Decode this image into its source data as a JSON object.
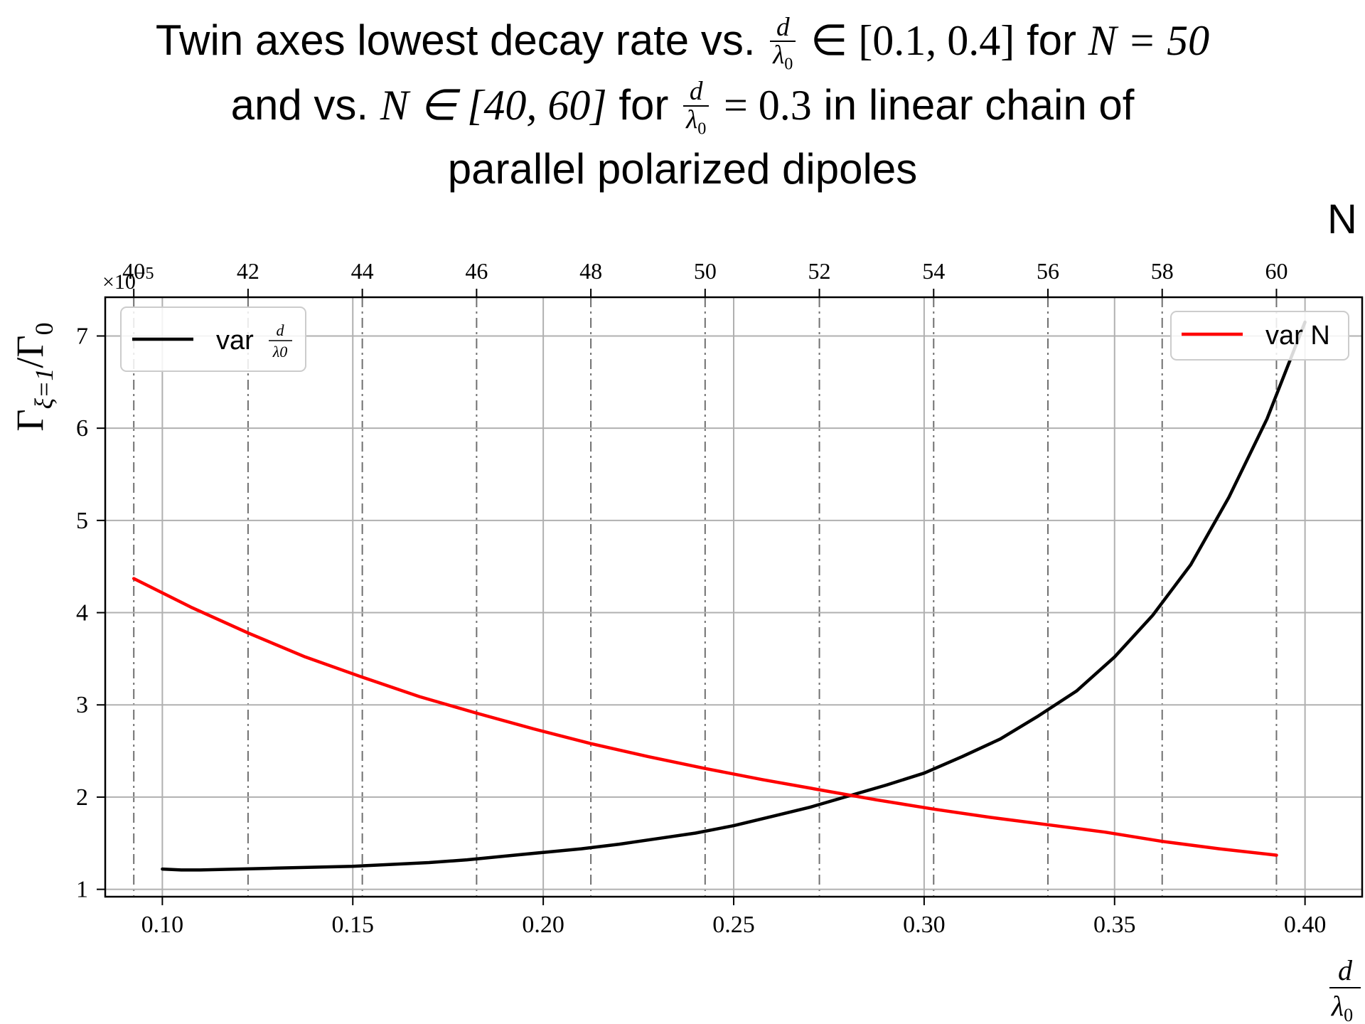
{
  "chart_data": {
    "type": "line",
    "title": {
      "line1_prefix": "Twin axes lowest decay rate vs.",
      "frac_num": "d",
      "frac_den": "λ",
      "frac_den_sub": "0",
      "line1_range": "∈ [0.1, 0.4]",
      "line1_for": "for",
      "line1_N": "N = 50",
      "line2_prefix": "and vs.",
      "line2_N_range": "N ∈ [40, 60]",
      "line2_for": "for",
      "line2_value": "= 0.3",
      "line2_suffix": "in linear chain of",
      "line3": "parallel polarized dipoles"
    },
    "ylabel": "Γ",
    "ylabel_sub": "ξ=1",
    "ylabel_rest": "/Γ",
    "ylabel_rest_sub": "0",
    "y_scale_label": "×10",
    "y_scale_exp": "−5",
    "xlabel_num": "d",
    "xlabel_den": "λ",
    "xlabel_den_sub": "0",
    "top_xlabel": "N",
    "x_bottom": {
      "lim": [
        0.085,
        0.415
      ],
      "ticks": [
        0.1,
        0.15,
        0.2,
        0.25,
        0.3,
        0.35,
        0.4
      ],
      "tick_labels": [
        "0.10",
        "0.15",
        "0.20",
        "0.25",
        "0.30",
        "0.35",
        "0.40"
      ]
    },
    "x_top": {
      "lim": [
        39.5,
        61.5
      ],
      "ticks": [
        40,
        42,
        44,
        46,
        48,
        50,
        52,
        54,
        56,
        58,
        60
      ],
      "tick_labels": [
        "40",
        "42",
        "44",
        "46",
        "48",
        "50",
        "52",
        "54",
        "56",
        "58",
        "60"
      ]
    },
    "y": {
      "lim": [
        0.92,
        7.42
      ],
      "ticks": [
        1,
        2,
        3,
        4,
        5,
        6,
        7
      ],
      "tick_labels": [
        "1",
        "2",
        "3",
        "4",
        "5",
        "6",
        "7"
      ]
    },
    "grid": true,
    "series": [
      {
        "name": "var d/λ0",
        "legend_label": "var",
        "legend_frac_num": "d",
        "legend_frac_den": "λ0",
        "axis": "bottom",
        "color": "#000000",
        "legend_placement": "upper left",
        "x": [
          0.1,
          0.105,
          0.11,
          0.12,
          0.13,
          0.14,
          0.15,
          0.16,
          0.17,
          0.18,
          0.19,
          0.2,
          0.21,
          0.22,
          0.23,
          0.24,
          0.25,
          0.26,
          0.27,
          0.28,
          0.29,
          0.3,
          0.31,
          0.32,
          0.33,
          0.34,
          0.35,
          0.36,
          0.37,
          0.38,
          0.39,
          0.4
        ],
        "values": [
          1.22,
          1.21,
          1.21,
          1.22,
          1.23,
          1.24,
          1.25,
          1.27,
          1.29,
          1.32,
          1.36,
          1.4,
          1.44,
          1.49,
          1.55,
          1.61,
          1.69,
          1.79,
          1.89,
          2.01,
          2.13,
          2.26,
          2.44,
          2.63,
          2.88,
          3.15,
          3.52,
          3.97,
          4.52,
          5.25,
          6.1,
          7.15
        ]
      },
      {
        "name": "var N",
        "legend_label": "var N",
        "axis": "top",
        "color": "#ff0000",
        "legend_placement": "upper right",
        "x": [
          40,
          41,
          42,
          43,
          44,
          45,
          46,
          47,
          48,
          49,
          50,
          51,
          52,
          53,
          54,
          55,
          56,
          57,
          58,
          59,
          60
        ],
        "values": [
          4.37,
          4.06,
          3.78,
          3.52,
          3.3,
          3.09,
          2.91,
          2.74,
          2.58,
          2.44,
          2.31,
          2.19,
          2.08,
          1.97,
          1.87,
          1.78,
          1.7,
          1.62,
          1.52,
          1.44,
          1.37
        ]
      }
    ]
  }
}
